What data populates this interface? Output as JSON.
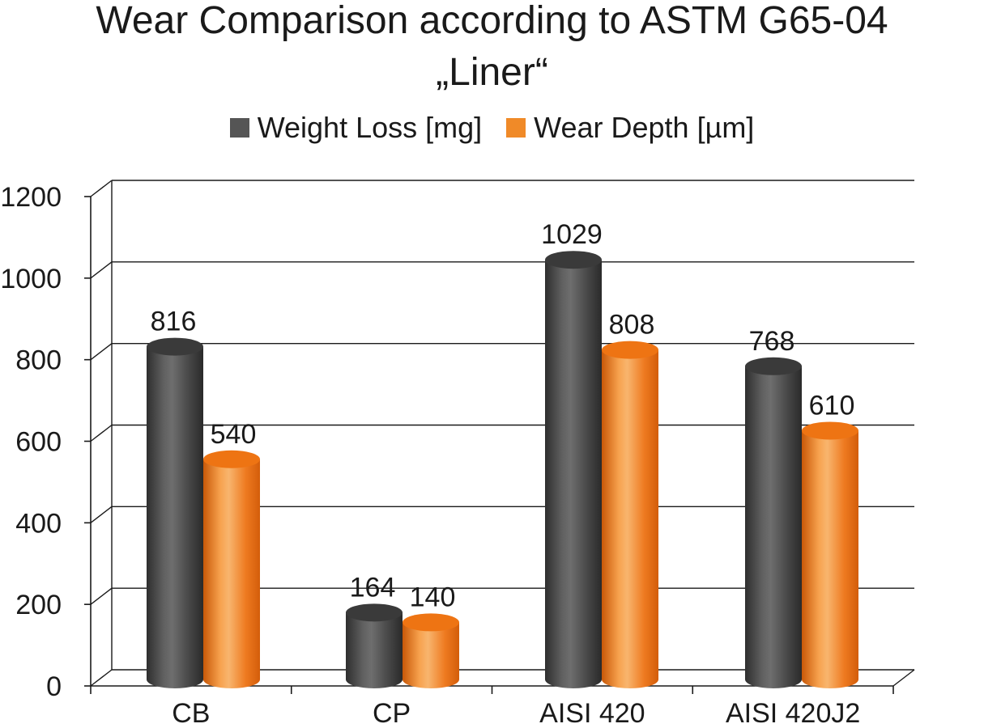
{
  "chart_data": {
    "type": "bar",
    "title_lines": [
      "Wear Comparison according to ASTM G65-04",
      "„Liner“"
    ],
    "categories": [
      "CB",
      "CP",
      "AISI 420",
      "AISI 420J2"
    ],
    "series": [
      {
        "name": "Weight Loss [mg]",
        "values": [
          816,
          164,
          1029,
          768
        ],
        "color": "#555555"
      },
      {
        "name": "Wear Depth [µm]",
        "values": [
          540,
          140,
          808,
          610
        ],
        "color": "#f08a28"
      }
    ],
    "y_ticks": [
      0,
      200,
      400,
      600,
      800,
      1000,
      1200
    ],
    "ylim": [
      0,
      1200
    ],
    "grid": true,
    "legend_position": "top",
    "style": "3d-cylinder"
  }
}
